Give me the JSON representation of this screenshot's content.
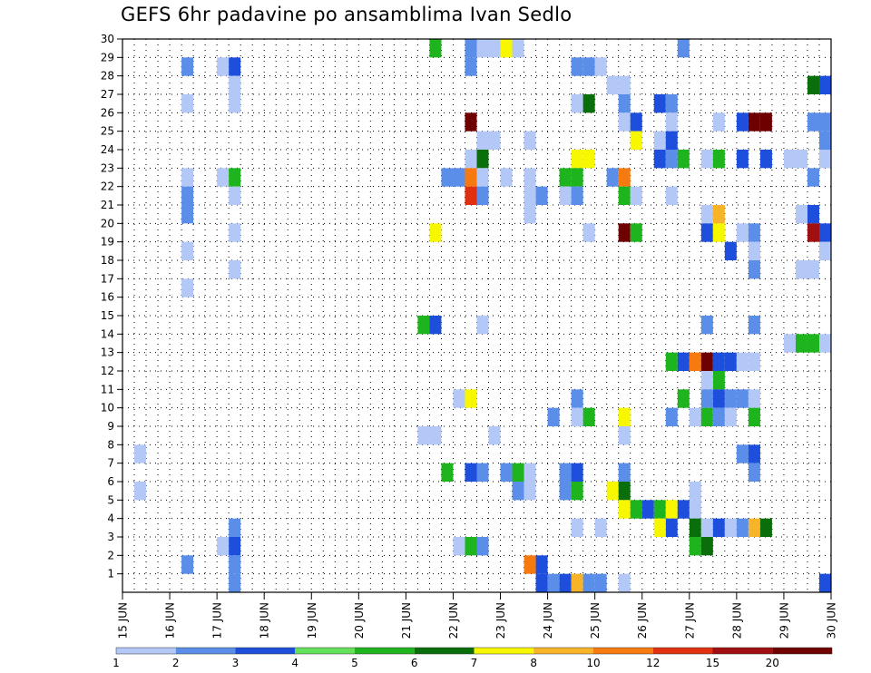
{
  "chart_data": {
    "type": "heatmap",
    "title": "GEFS 6hr padavine po ansamblima Ivan Sedlo",
    "x_ticks": [
      "15 JUN",
      "16 JUN",
      "17 JUN",
      "18 JUN",
      "19 JUN",
      "20 JUN",
      "21 JUN",
      "22 JUN",
      "23 JUN",
      "24 JUN",
      "25 JUN",
      "26 JUN",
      "27 JUN",
      "28 JUN",
      "29 JUN",
      "30 JUN"
    ],
    "y_ticks": [
      "1",
      "2",
      "3",
      "4",
      "5",
      "6",
      "7",
      "8",
      "9",
      "10",
      "11",
      "12",
      "13",
      "14",
      "15",
      "16",
      "17",
      "18",
      "19",
      "20",
      "21",
      "22",
      "23",
      "24",
      "25",
      "26",
      "27",
      "28",
      "29",
      "30"
    ],
    "ylim": [
      0,
      30
    ],
    "grid": true,
    "legend": {
      "placement": "bottom",
      "labels": [
        "1",
        "2",
        "3",
        "4",
        "5",
        "6",
        "7",
        "8",
        "10",
        "12",
        "15",
        "20"
      ],
      "colors": [
        "#b4c8f7",
        "#5a8ee8",
        "#1d4fdc",
        "#64e05a",
        "#1db41d",
        "#0a6e0a",
        "#f7f700",
        "#f7b428",
        "#f77a10",
        "#e03010",
        "#a01010",
        "#6e0000"
      ]
    },
    "cells": [
      {
        "x": 21.75,
        "y": 30,
        "c": 5
      },
      {
        "x": 22.5,
        "y": 30,
        "c": 2
      },
      {
        "x": 22.75,
        "y": 30,
        "c": 1
      },
      {
        "x": 23.0,
        "y": 30,
        "c": 1
      },
      {
        "x": 23.25,
        "y": 30,
        "c": 7
      },
      {
        "x": 23.5,
        "y": 30,
        "c": 1
      },
      {
        "x": 27.0,
        "y": 30,
        "c": 2
      },
      {
        "x": 16.5,
        "y": 29,
        "c": 2
      },
      {
        "x": 17.25,
        "y": 29,
        "c": 1
      },
      {
        "x": 17.5,
        "y": 29,
        "c": 3
      },
      {
        "x": 22.5,
        "y": 29,
        "c": 2
      },
      {
        "x": 24.75,
        "y": 29,
        "c": 2
      },
      {
        "x": 25.0,
        "y": 29,
        "c": 2
      },
      {
        "x": 25.25,
        "y": 29,
        "c": 1
      },
      {
        "x": 17.5,
        "y": 28,
        "c": 1
      },
      {
        "x": 25.5,
        "y": 28,
        "c": 1
      },
      {
        "x": 25.75,
        "y": 28,
        "c": 1
      },
      {
        "x": 29.75,
        "y": 28,
        "c": 6
      },
      {
        "x": 30.0,
        "y": 28,
        "c": 3
      },
      {
        "x": 16.5,
        "y": 27,
        "c": 1
      },
      {
        "x": 17.5,
        "y": 27,
        "c": 1
      },
      {
        "x": 24.75,
        "y": 27,
        "c": 1
      },
      {
        "x": 25.0,
        "y": 27,
        "c": 6
      },
      {
        "x": 25.75,
        "y": 27,
        "c": 2
      },
      {
        "x": 26.5,
        "y": 27,
        "c": 3
      },
      {
        "x": 26.75,
        "y": 27,
        "c": 2
      },
      {
        "x": 22.5,
        "y": 26,
        "c": 12
      },
      {
        "x": 25.75,
        "y": 26,
        "c": 1
      },
      {
        "x": 26.0,
        "y": 26,
        "c": 3
      },
      {
        "x": 26.75,
        "y": 26,
        "c": 1
      },
      {
        "x": 27.75,
        "y": 26,
        "c": 1
      },
      {
        "x": 28.25,
        "y": 26,
        "c": 3
      },
      {
        "x": 28.5,
        "y": 26,
        "c": 12
      },
      {
        "x": 28.75,
        "y": 26,
        "c": 12
      },
      {
        "x": 29.75,
        "y": 26,
        "c": 2
      },
      {
        "x": 30.0,
        "y": 26,
        "c": 2
      },
      {
        "x": 22.75,
        "y": 25,
        "c": 1
      },
      {
        "x": 23.0,
        "y": 25,
        "c": 1
      },
      {
        "x": 23.75,
        "y": 25,
        "c": 1
      },
      {
        "x": 26.0,
        "y": 25,
        "c": 7
      },
      {
        "x": 26.5,
        "y": 25,
        "c": 1
      },
      {
        "x": 26.75,
        "y": 25,
        "c": 3
      },
      {
        "x": 30.0,
        "y": 25,
        "c": 2
      },
      {
        "x": 22.5,
        "y": 24,
        "c": 1
      },
      {
        "x": 22.75,
        "y": 24,
        "c": 6
      },
      {
        "x": 24.75,
        "y": 24,
        "c": 7
      },
      {
        "x": 25.0,
        "y": 24,
        "c": 7
      },
      {
        "x": 26.5,
        "y": 24,
        "c": 3
      },
      {
        "x": 26.75,
        "y": 24,
        "c": 2
      },
      {
        "x": 27.0,
        "y": 24,
        "c": 5
      },
      {
        "x": 27.5,
        "y": 24,
        "c": 1
      },
      {
        "x": 27.75,
        "y": 24,
        "c": 5
      },
      {
        "x": 28.25,
        "y": 24,
        "c": 3
      },
      {
        "x": 28.75,
        "y": 24,
        "c": 3
      },
      {
        "x": 29.25,
        "y": 24,
        "c": 1
      },
      {
        "x": 29.5,
        "y": 24,
        "c": 1
      },
      {
        "x": 30.0,
        "y": 24,
        "c": 1
      },
      {
        "x": 16.5,
        "y": 23,
        "c": 1
      },
      {
        "x": 17.25,
        "y": 23,
        "c": 1
      },
      {
        "x": 17.5,
        "y": 23,
        "c": 5
      },
      {
        "x": 22.0,
        "y": 23,
        "c": 2
      },
      {
        "x": 22.25,
        "y": 23,
        "c": 2
      },
      {
        "x": 22.5,
        "y": 23,
        "c": 9
      },
      {
        "x": 22.75,
        "y": 23,
        "c": 1
      },
      {
        "x": 23.25,
        "y": 23,
        "c": 1
      },
      {
        "x": 23.75,
        "y": 23,
        "c": 1
      },
      {
        "x": 24.5,
        "y": 23,
        "c": 5
      },
      {
        "x": 24.75,
        "y": 23,
        "c": 5
      },
      {
        "x": 25.5,
        "y": 23,
        "c": 2
      },
      {
        "x": 25.75,
        "y": 23,
        "c": 9
      },
      {
        "x": 29.75,
        "y": 23,
        "c": 2
      },
      {
        "x": 16.5,
        "y": 22,
        "c": 2
      },
      {
        "x": 17.5,
        "y": 22,
        "c": 1
      },
      {
        "x": 22.5,
        "y": 22,
        "c": 10
      },
      {
        "x": 22.75,
        "y": 22,
        "c": 2
      },
      {
        "x": 23.75,
        "y": 22,
        "c": 1
      },
      {
        "x": 24.0,
        "y": 22,
        "c": 2
      },
      {
        "x": 24.5,
        "y": 22,
        "c": 1
      },
      {
        "x": 24.75,
        "y": 22,
        "c": 2
      },
      {
        "x": 25.75,
        "y": 22,
        "c": 5
      },
      {
        "x": 26.0,
        "y": 22,
        "c": 1
      },
      {
        "x": 26.75,
        "y": 22,
        "c": 1
      },
      {
        "x": 16.5,
        "y": 21,
        "c": 2
      },
      {
        "x": 23.75,
        "y": 21,
        "c": 1
      },
      {
        "x": 27.5,
        "y": 21,
        "c": 1
      },
      {
        "x": 27.75,
        "y": 21,
        "c": 8
      },
      {
        "x": 29.5,
        "y": 21,
        "c": 1
      },
      {
        "x": 29.75,
        "y": 21,
        "c": 3
      },
      {
        "x": 17.5,
        "y": 20,
        "c": 1
      },
      {
        "x": 21.75,
        "y": 20,
        "c": 7
      },
      {
        "x": 25.0,
        "y": 20,
        "c": 1
      },
      {
        "x": 25.75,
        "y": 20,
        "c": 12
      },
      {
        "x": 26.0,
        "y": 20,
        "c": 5
      },
      {
        "x": 27.5,
        "y": 20,
        "c": 3
      },
      {
        "x": 27.75,
        "y": 20,
        "c": 7
      },
      {
        "x": 28.25,
        "y": 20,
        "c": 1
      },
      {
        "x": 28.5,
        "y": 20,
        "c": 2
      },
      {
        "x": 29.75,
        "y": 20,
        "c": 11
      },
      {
        "x": 30.0,
        "y": 20,
        "c": 3
      },
      {
        "x": 16.5,
        "y": 19,
        "c": 1
      },
      {
        "x": 28.0,
        "y": 19,
        "c": 3
      },
      {
        "x": 28.5,
        "y": 19,
        "c": 1
      },
      {
        "x": 30.0,
        "y": 19,
        "c": 1
      },
      {
        "x": 17.5,
        "y": 18,
        "c": 1
      },
      {
        "x": 28.5,
        "y": 18,
        "c": 2
      },
      {
        "x": 29.5,
        "y": 18,
        "c": 1
      },
      {
        "x": 29.75,
        "y": 18,
        "c": 1
      },
      {
        "x": 16.5,
        "y": 17,
        "c": 1
      },
      {
        "x": 21.5,
        "y": 15,
        "c": 5
      },
      {
        "x": 21.75,
        "y": 15,
        "c": 3
      },
      {
        "x": 22.75,
        "y": 15,
        "c": 1
      },
      {
        "x": 27.5,
        "y": 15,
        "c": 2
      },
      {
        "x": 28.5,
        "y": 15,
        "c": 2
      },
      {
        "x": 29.25,
        "y": 14,
        "c": 1
      },
      {
        "x": 29.5,
        "y": 14,
        "c": 5
      },
      {
        "x": 29.75,
        "y": 14,
        "c": 5
      },
      {
        "x": 30.0,
        "y": 14,
        "c": 1
      },
      {
        "x": 26.75,
        "y": 13,
        "c": 5
      },
      {
        "x": 27.0,
        "y": 13,
        "c": 3
      },
      {
        "x": 27.25,
        "y": 13,
        "c": 9
      },
      {
        "x": 27.5,
        "y": 13,
        "c": 12
      },
      {
        "x": 27.75,
        "y": 13,
        "c": 3
      },
      {
        "x": 28.0,
        "y": 13,
        "c": 3
      },
      {
        "x": 28.25,
        "y": 13,
        "c": 1
      },
      {
        "x": 28.5,
        "y": 13,
        "c": 1
      },
      {
        "x": 27.75,
        "y": 12,
        "c": 5
      },
      {
        "x": 27.5,
        "y": 12,
        "c": 1
      },
      {
        "x": 22.25,
        "y": 11,
        "c": 1
      },
      {
        "x": 22.5,
        "y": 11,
        "c": 7
      },
      {
        "x": 24.75,
        "y": 11,
        "c": 2
      },
      {
        "x": 27.0,
        "y": 11,
        "c": 5
      },
      {
        "x": 27.5,
        "y": 11,
        "c": 2
      },
      {
        "x": 27.75,
        "y": 11,
        "c": 3
      },
      {
        "x": 28.0,
        "y": 11,
        "c": 2
      },
      {
        "x": 28.25,
        "y": 11,
        "c": 2
      },
      {
        "x": 28.5,
        "y": 11,
        "c": 1
      },
      {
        "x": 24.75,
        "y": 10,
        "c": 1
      },
      {
        "x": 25.0,
        "y": 10,
        "c": 5
      },
      {
        "x": 25.75,
        "y": 10,
        "c": 7
      },
      {
        "x": 24.25,
        "y": 10,
        "c": 2
      },
      {
        "x": 26.75,
        "y": 10,
        "c": 2
      },
      {
        "x": 27.25,
        "y": 10,
        "c": 1
      },
      {
        "x": 27.5,
        "y": 10,
        "c": 5
      },
      {
        "x": 27.75,
        "y": 10,
        "c": 2
      },
      {
        "x": 28.5,
        "y": 10,
        "c": 5
      },
      {
        "x": 28.0,
        "y": 10,
        "c": 1
      },
      {
        "x": 21.5,
        "y": 9,
        "c": 1
      },
      {
        "x": 21.75,
        "y": 9,
        "c": 1
      },
      {
        "x": 23.0,
        "y": 9,
        "c": 1
      },
      {
        "x": 25.75,
        "y": 9,
        "c": 1
      },
      {
        "x": 15.5,
        "y": 8,
        "c": 1
      },
      {
        "x": 28.25,
        "y": 8,
        "c": 2
      },
      {
        "x": 28.5,
        "y": 8,
        "c": 3
      },
      {
        "x": 22.0,
        "y": 7,
        "c": 5
      },
      {
        "x": 22.5,
        "y": 7,
        "c": 3
      },
      {
        "x": 22.75,
        "y": 7,
        "c": 2
      },
      {
        "x": 23.25,
        "y": 7,
        "c": 2
      },
      {
        "x": 23.5,
        "y": 7,
        "c": 5
      },
      {
        "x": 23.75,
        "y": 7,
        "c": 1
      },
      {
        "x": 24.5,
        "y": 7,
        "c": 2
      },
      {
        "x": 24.75,
        "y": 7,
        "c": 3
      },
      {
        "x": 25.75,
        "y": 7,
        "c": 2
      },
      {
        "x": 28.5,
        "y": 7,
        "c": 2
      },
      {
        "x": 15.5,
        "y": 6,
        "c": 1
      },
      {
        "x": 23.5,
        "y": 6,
        "c": 2
      },
      {
        "x": 23.75,
        "y": 6,
        "c": 1
      },
      {
        "x": 24.5,
        "y": 6,
        "c": 2
      },
      {
        "x": 24.75,
        "y": 6,
        "c": 5
      },
      {
        "x": 25.5,
        "y": 6,
        "c": 7
      },
      {
        "x": 25.75,
        "y": 6,
        "c": 6
      },
      {
        "x": 27.25,
        "y": 6,
        "c": 1
      },
      {
        "x": 25.75,
        "y": 5,
        "c": 7
      },
      {
        "x": 26.0,
        "y": 5,
        "c": 5
      },
      {
        "x": 26.25,
        "y": 5,
        "c": 3
      },
      {
        "x": 26.5,
        "y": 5,
        "c": 5
      },
      {
        "x": 26.75,
        "y": 5,
        "c": 7
      },
      {
        "x": 27.25,
        "y": 5,
        "c": 1
      },
      {
        "x": 27.0,
        "y": 5,
        "c": 3
      },
      {
        "x": 17.5,
        "y": 4,
        "c": 2
      },
      {
        "x": 24.75,
        "y": 4,
        "c": 1
      },
      {
        "x": 25.25,
        "y": 4,
        "c": 1
      },
      {
        "x": 26.75,
        "y": 4,
        "c": 3
      },
      {
        "x": 26.5,
        "y": 4,
        "c": 7
      },
      {
        "x": 27.25,
        "y": 4,
        "c": 6
      },
      {
        "x": 27.5,
        "y": 4,
        "c": 1
      },
      {
        "x": 27.75,
        "y": 4,
        "c": 3
      },
      {
        "x": 28.0,
        "y": 4,
        "c": 1
      },
      {
        "x": 28.25,
        "y": 4,
        "c": 2
      },
      {
        "x": 28.5,
        "y": 4,
        "c": 8
      },
      {
        "x": 28.75,
        "y": 4,
        "c": 6
      },
      {
        "x": 17.25,
        "y": 3,
        "c": 1
      },
      {
        "x": 17.5,
        "y": 3,
        "c": 3
      },
      {
        "x": 22.25,
        "y": 3,
        "c": 1
      },
      {
        "x": 22.5,
        "y": 3,
        "c": 5
      },
      {
        "x": 22.75,
        "y": 3,
        "c": 2
      },
      {
        "x": 27.25,
        "y": 3,
        "c": 5
      },
      {
        "x": 27.5,
        "y": 3,
        "c": 6
      },
      {
        "x": 16.5,
        "y": 2,
        "c": 2
      },
      {
        "x": 17.5,
        "y": 2,
        "c": 2
      },
      {
        "x": 23.75,
        "y": 2,
        "c": 9
      },
      {
        "x": 24.0,
        "y": 2,
        "c": 3
      },
      {
        "x": 17.5,
        "y": 1,
        "c": 2
      },
      {
        "x": 24.0,
        "y": 1,
        "c": 3
      },
      {
        "x": 24.25,
        "y": 1,
        "c": 2
      },
      {
        "x": 24.5,
        "y": 1,
        "c": 3
      },
      {
        "x": 24.75,
        "y": 1,
        "c": 8
      },
      {
        "x": 25.0,
        "y": 1,
        "c": 2
      },
      {
        "x": 25.25,
        "y": 1,
        "c": 2
      },
      {
        "x": 25.75,
        "y": 1,
        "c": 1
      },
      {
        "x": 30.0,
        "y": 1,
        "c": 3
      }
    ]
  }
}
